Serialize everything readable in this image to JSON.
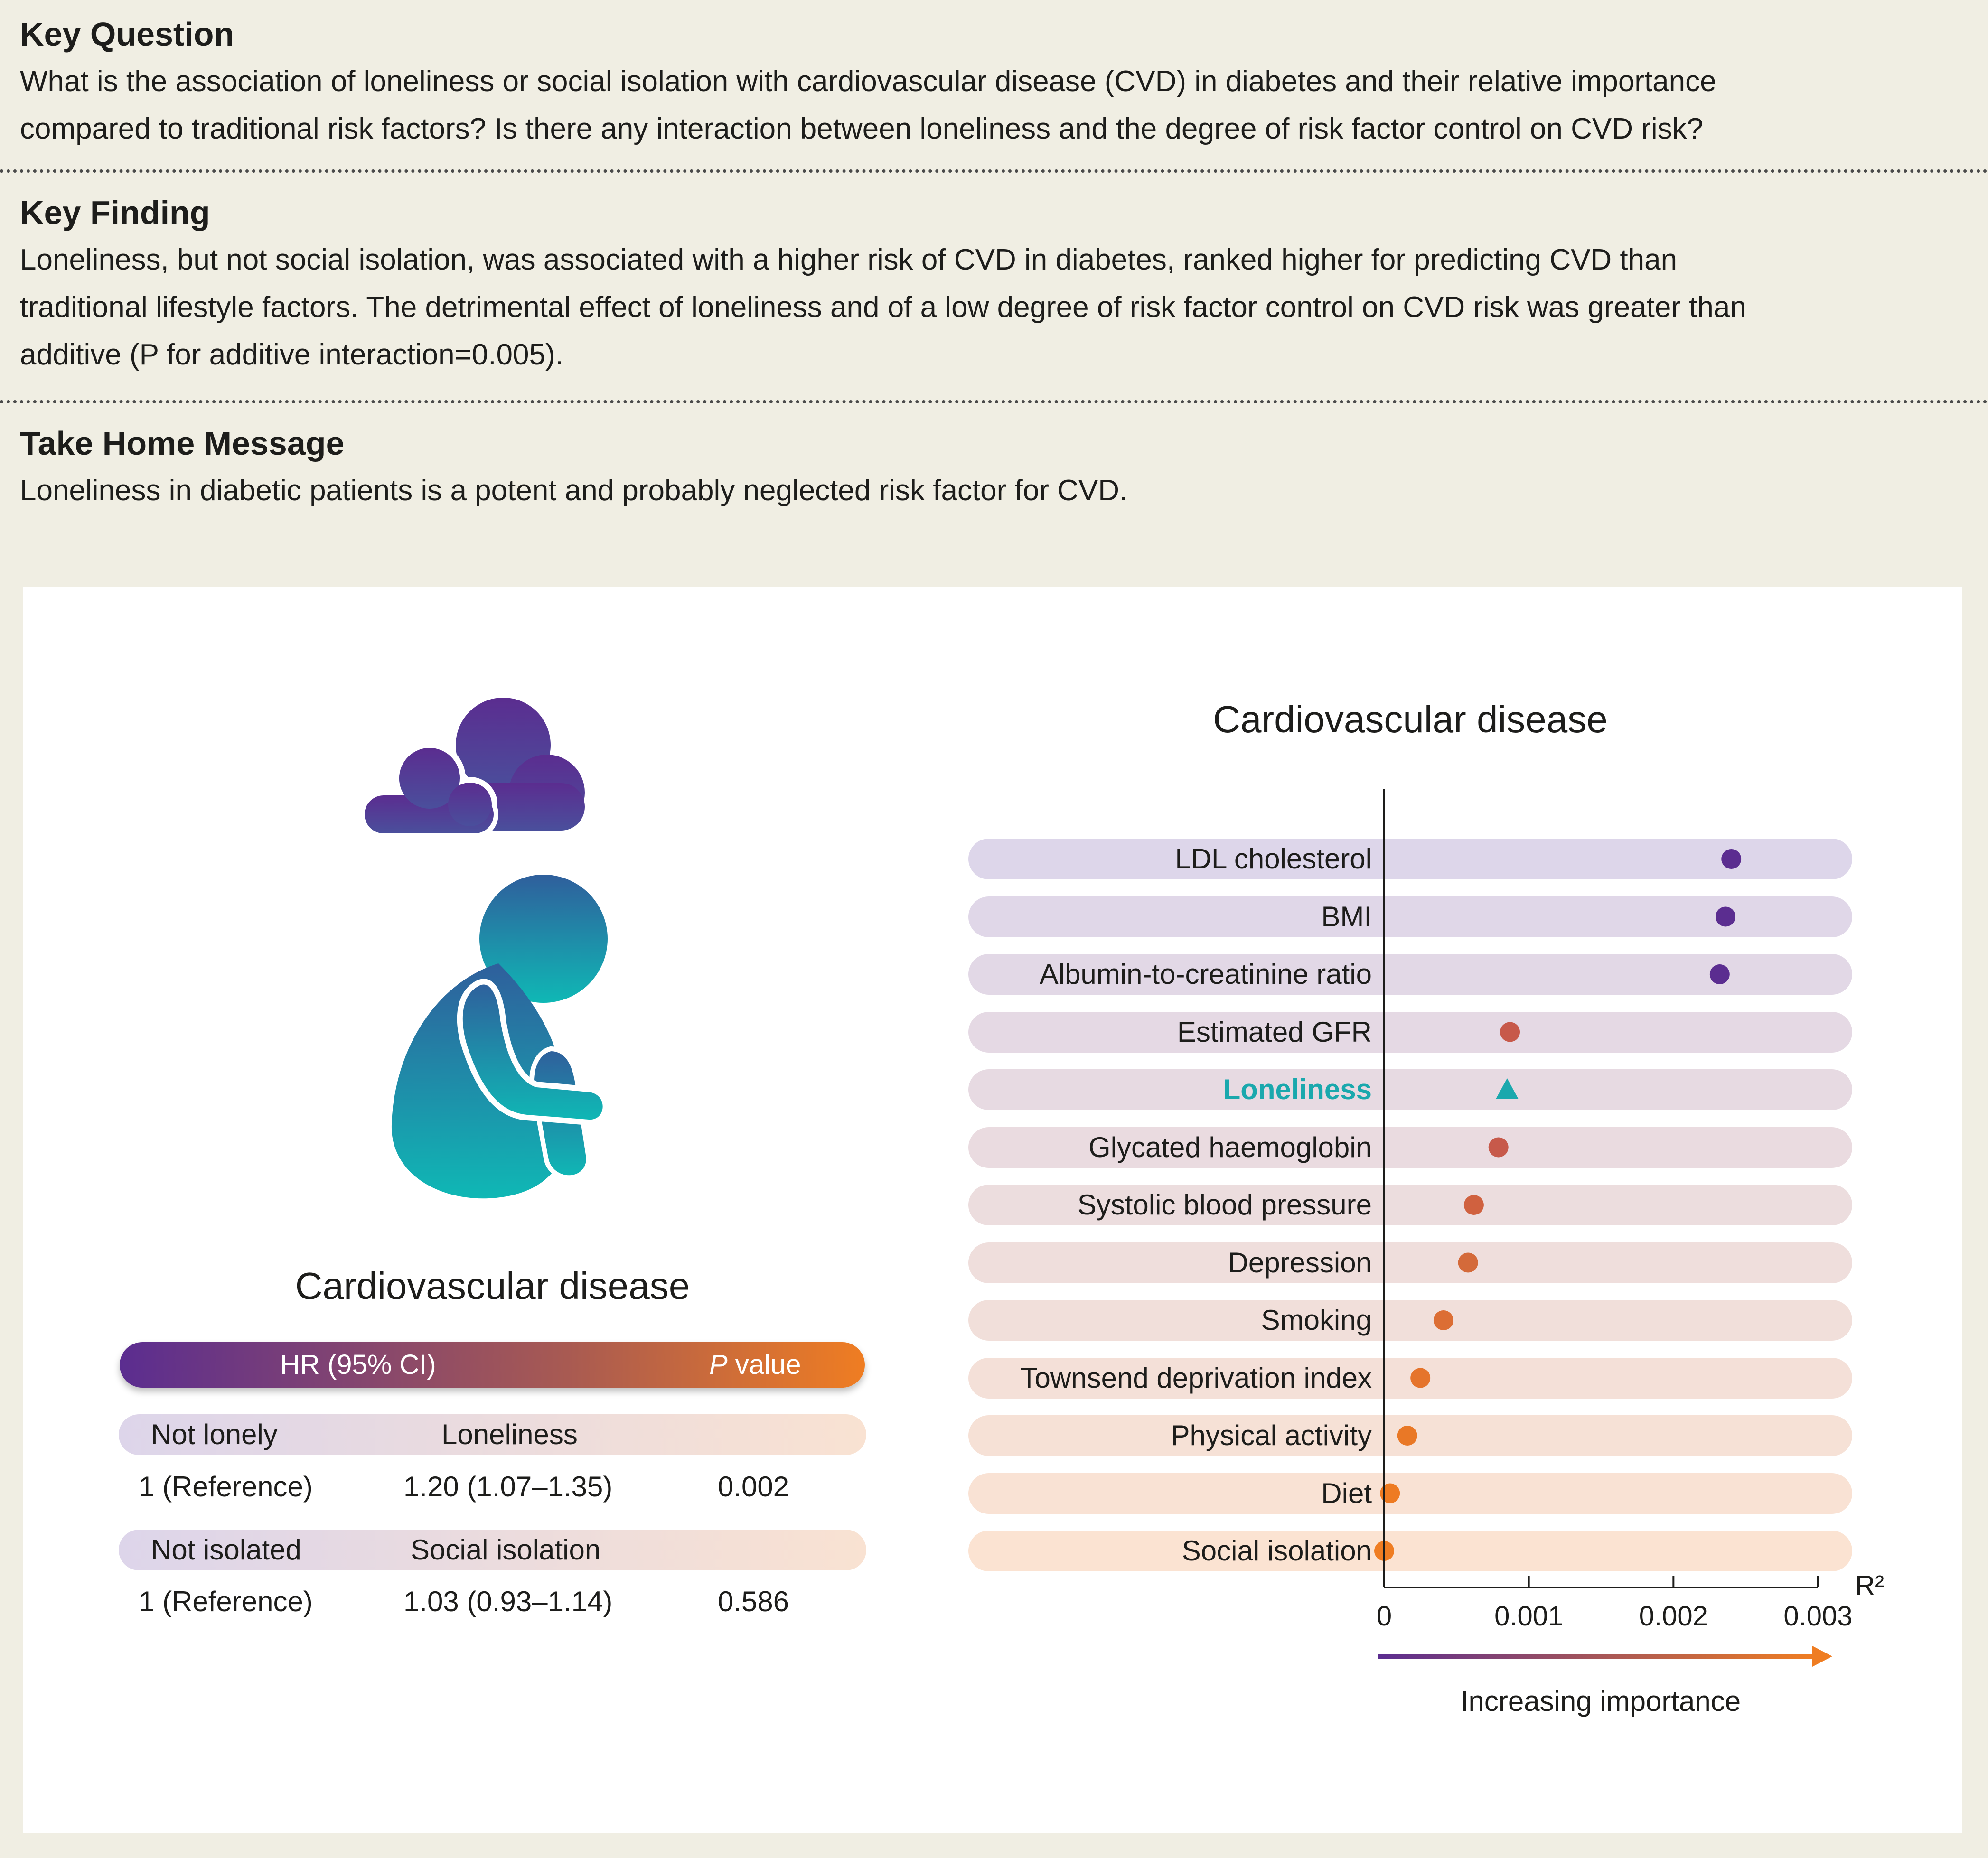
{
  "key_question": {
    "heading": "Key Question",
    "lines": [
      "What is the association of loneliness or social isolation with cardiovascular disease (CVD) in diabetes and their relative importance",
      "compared to traditional risk factors? Is there any interaction between loneliness and the degree of risk factor control on CVD risk?"
    ]
  },
  "key_finding": {
    "heading": "Key Finding",
    "lines": [
      "Loneliness, but not social isolation, was associated with a higher risk of CVD in diabetes, ranked higher for predicting CVD than",
      "traditional lifestyle factors. The detrimental effect of loneliness and of a low degree of risk factor control on CVD risk was greater than",
      "additive (P for additive interaction=0.005)."
    ]
  },
  "take_home": {
    "heading": "Take Home Message",
    "lines": [
      "Loneliness in diabetic patients is a potent and probably neglected risk factor for CVD."
    ]
  },
  "colors": {
    "purple": "#5b2d90",
    "orange": "#ef7d22",
    "teal": "#1aa8ad",
    "panel_bg": "#ffffff",
    "page_bg": "#f0eee3"
  },
  "icon": "lonely-person-with-cloud-icon",
  "hr_table": {
    "title": "Cardiovascular disease",
    "header_hr": "HR (95% CI)",
    "header_p_italic": "P",
    "header_p_rest": " value",
    "groups": [
      {
        "ref_label": "Not lonely",
        "exposure_label": "Loneliness",
        "ref_value": "1 (Reference)",
        "hr": "1.20 (1.07–1.35)",
        "p": "0.002"
      },
      {
        "ref_label": "Not isolated",
        "exposure_label": "Social isolation",
        "ref_value": "1 (Reference)",
        "hr": "1.03 (0.93–1.14)",
        "p": "0.586"
      }
    ]
  },
  "chart_data": {
    "type": "scatter",
    "title": "Cardiovascular disease",
    "xlabel": "R²",
    "xlim": [
      0,
      0.003
    ],
    "x_ticks": [
      "0",
      "0.001",
      "0.002",
      "0.003"
    ],
    "arrow_label": "Increasing importance",
    "grid": false,
    "categories": [
      "LDL cholesterol",
      "BMI",
      "Albumin-to-creatinine ratio",
      "Estimated GFR",
      "Loneliness",
      "Glycated haemoglobin",
      "Systolic blood pressure",
      "Depression",
      "Smoking",
      "Townsend deprivation index",
      "Physical activity",
      "Diet",
      "Social isolation"
    ],
    "values": [
      0.0024,
      0.00236,
      0.00232,
      0.00087,
      0.00085,
      0.00079,
      0.00062,
      0.00058,
      0.00041,
      0.00025,
      0.00016,
      4e-05,
      0.0
    ],
    "highlight": "Loneliness",
    "marker_colors": [
      "#5b2d90",
      "#5b2d90",
      "#5b2d90",
      "#c7594a",
      "#1aa8ad",
      "#c7594a",
      "#d0613f",
      "#d46a3a",
      "#dc6e34",
      "#e5742c",
      "#e97826",
      "#ee7b22",
      "#ef7d22"
    ]
  }
}
